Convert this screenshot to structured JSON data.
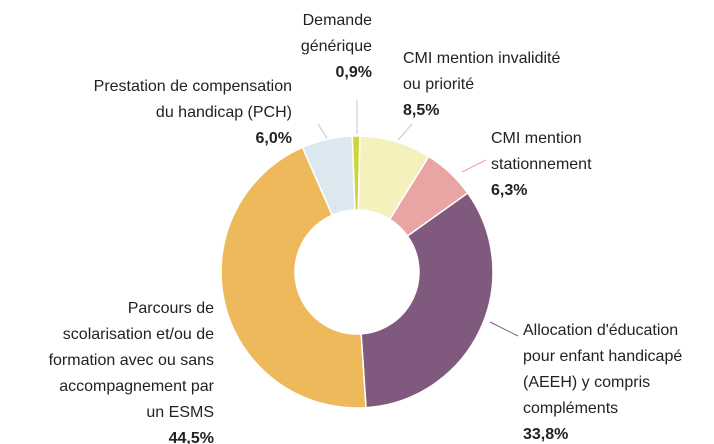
{
  "chart_data": {
    "type": "donut",
    "categories": [
      "Demande\ngénérique",
      "CMI mention invalidité\nou priorité",
      "CMI mention\nstationnement",
      "Allocation d'éducation\npour enfant handicapé\n(AEEH) y compris\ncompléments",
      "Parcours de\nscolarisation et/ou de\nformation avec ou sans\naccompagnement par\nun ESMS",
      "Prestation de compensation\ndu handicap (PCH)"
    ],
    "values": [
      0.9,
      8.5,
      6.3,
      33.8,
      44.5,
      6.0
    ],
    "value_labels": [
      "0,9%",
      "8,5%",
      "6,3%",
      "33,8%",
      "44,5%",
      "6,0%"
    ],
    "colors": [
      "#cdd43c",
      "#f5f1bd",
      "#e8a5a3",
      "#7f5a7e",
      "#eeb95a",
      "#dce8ef"
    ]
  }
}
